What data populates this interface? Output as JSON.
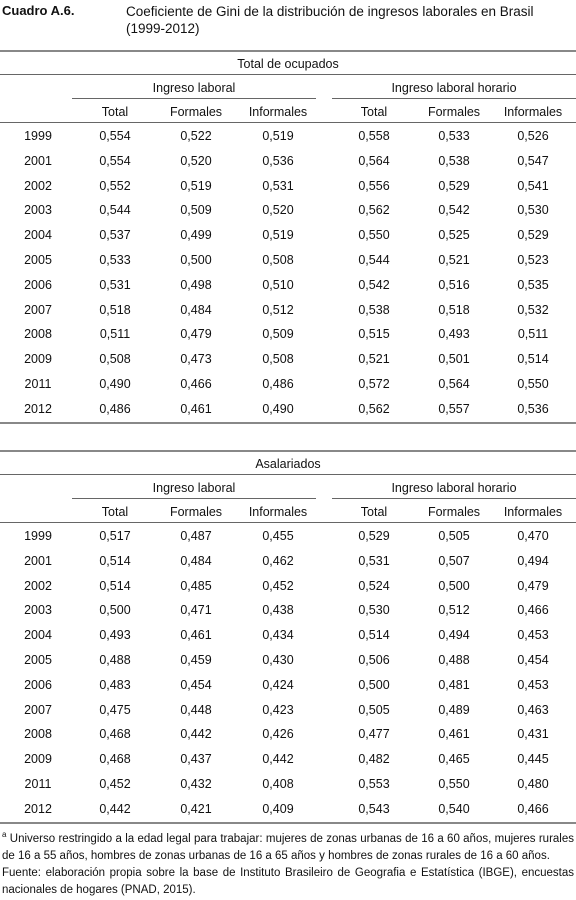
{
  "header": {
    "label": "Cuadro A.6.",
    "title": "Coeficiente de Gini de la distribución de ingresos laborales en Brasil (1999-2012)"
  },
  "panels": [
    {
      "title": "Total de ocupados",
      "groups": [
        "Ingreso laboral",
        "Ingreso laboral horario"
      ],
      "columns": [
        "Total",
        "Formales",
        "Informales",
        "Total",
        "Formales",
        "Informales"
      ],
      "rows": [
        [
          "1999",
          "0,554",
          "0,522",
          "0,519",
          "0,558",
          "0,533",
          "0,526"
        ],
        [
          "2001",
          "0,554",
          "0,520",
          "0,536",
          "0,564",
          "0,538",
          "0,547"
        ],
        [
          "2002",
          "0,552",
          "0,519",
          "0,531",
          "0,556",
          "0,529",
          "0,541"
        ],
        [
          "2003",
          "0,544",
          "0,509",
          "0,520",
          "0,562",
          "0,542",
          "0,530"
        ],
        [
          "2004",
          "0,537",
          "0,499",
          "0,519",
          "0,550",
          "0,525",
          "0,529"
        ],
        [
          "2005",
          "0,533",
          "0,500",
          "0,508",
          "0,544",
          "0,521",
          "0,523"
        ],
        [
          "2006",
          "0,531",
          "0,498",
          "0,510",
          "0,542",
          "0,516",
          "0,535"
        ],
        [
          "2007",
          "0,518",
          "0,484",
          "0,512",
          "0,538",
          "0,518",
          "0,532"
        ],
        [
          "2008",
          "0,511",
          "0,479",
          "0,509",
          "0,515",
          "0,493",
          "0,511"
        ],
        [
          "2009",
          "0,508",
          "0,473",
          "0,508",
          "0,521",
          "0,501",
          "0,514"
        ],
        [
          "2011",
          "0,490",
          "0,466",
          "0,486",
          "0,572",
          "0,564",
          "0,550"
        ],
        [
          "2012",
          "0,486",
          "0,461",
          "0,490",
          "0,562",
          "0,557",
          "0,536"
        ]
      ]
    },
    {
      "title": "Asalariados",
      "groups": [
        "Ingreso laboral",
        "Ingreso laboral horario"
      ],
      "columns": [
        "Total",
        "Formales",
        "Informales",
        "Total",
        "Formales",
        "Informales"
      ],
      "rows": [
        [
          "1999",
          "0,517",
          "0,487",
          "0,455",
          "0,529",
          "0,505",
          "0,470"
        ],
        [
          "2001",
          "0,514",
          "0,484",
          "0,462",
          "0,531",
          "0,507",
          "0,494"
        ],
        [
          "2002",
          "0,514",
          "0,485",
          "0,452",
          "0,524",
          "0,500",
          "0,479"
        ],
        [
          "2003",
          "0,500",
          "0,471",
          "0,438",
          "0,530",
          "0,512",
          "0,466"
        ],
        [
          "2004",
          "0,493",
          "0,461",
          "0,434",
          "0,514",
          "0,494",
          "0,453"
        ],
        [
          "2005",
          "0,488",
          "0,459",
          "0,430",
          "0,506",
          "0,488",
          "0,454"
        ],
        [
          "2006",
          "0,483",
          "0,454",
          "0,424",
          "0,500",
          "0,481",
          "0,453"
        ],
        [
          "2007",
          "0,475",
          "0,448",
          "0,423",
          "0,505",
          "0,489",
          "0,463"
        ],
        [
          "2008",
          "0,468",
          "0,442",
          "0,426",
          "0,477",
          "0,461",
          "0,431"
        ],
        [
          "2009",
          "0,468",
          "0,437",
          "0,442",
          "0,482",
          "0,465",
          "0,445"
        ],
        [
          "2011",
          "0,452",
          "0,432",
          "0,408",
          "0,553",
          "0,550",
          "0,480"
        ],
        [
          "2012",
          "0,442",
          "0,421",
          "0,409",
          "0,543",
          "0,540",
          "0,466"
        ]
      ]
    }
  ],
  "notes": {
    "marker": "a",
    "text": " Universo restringido a la edad legal para trabajar: mujeres de zonas urbanas de 16 a 60 años, mujeres rurales de 16 a 55 años, hombres de zonas urbanas de 16 a 65 años y hombres de zonas rurales de 16 a 60 años.",
    "source": "Fuente: elaboración propia sobre la base de Instituto Brasileiro de Geografia e Estatística (IBGE), encuestas nacionales de hogares (PNAD, 2015)."
  }
}
